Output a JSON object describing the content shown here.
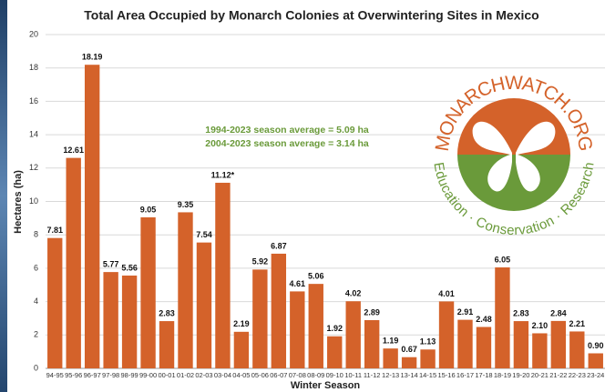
{
  "chart_data": {
    "type": "bar",
    "title": "Total Area Occupied by Monarch Colonies at Overwintering Sites in Mexico",
    "x_label": "Winter Season",
    "y_label": "Hectares (ha)",
    "annotations": [
      "1994-2023 season average = 5.09 ha",
      "2004-2023 season average = 3.14 ha"
    ],
    "categories": [
      "94-95",
      "95-96",
      "96-97",
      "97-98",
      "98-99",
      "99-00",
      "00-01",
      "01-02",
      "02-03",
      "03-04",
      "04-05",
      "05-06",
      "06-07",
      "07-08",
      "08-09",
      "09-10",
      "10-11",
      "11-12",
      "12-13",
      "13-14",
      "14-15",
      "15-16",
      "16-17",
      "17-18",
      "18-19",
      "19-20",
      "20-21",
      "21-22",
      "22-23",
      "23-24"
    ],
    "values": [
      7.81,
      12.61,
      18.19,
      5.77,
      5.56,
      9.05,
      2.83,
      9.35,
      7.54,
      11.12,
      2.19,
      5.92,
      6.87,
      4.61,
      5.06,
      1.92,
      4.02,
      2.89,
      1.19,
      0.67,
      1.13,
      4.01,
      2.91,
      2.48,
      6.05,
      2.83,
      2.1,
      2.84,
      2.21,
      0.9
    ],
    "value_labels": [
      "7.81",
      "12.61",
      "18.19",
      "5.77",
      "5.56",
      "9.05",
      "2.83",
      "9.35",
      "7.54",
      "11.12*",
      "2.19",
      "5.92",
      "6.87",
      "4.61",
      "5.06",
      "1.92",
      "4.02",
      "2.89",
      "1.19",
      "0.67",
      "1.13",
      "4.01",
      "2.91",
      "2.48",
      "6.05",
      "2.83",
      "2.10",
      "2.84",
      "2.21",
      "0.90"
    ],
    "color": "#d4622a",
    "ylim": [
      0,
      20
    ],
    "yticks": [
      0,
      2,
      4,
      6,
      8,
      10,
      12,
      14,
      16,
      18,
      20
    ],
    "grid": true
  },
  "logo": {
    "title": "MONARCHWATCH.ORG",
    "tagline": "Education · Conservation · Research"
  }
}
